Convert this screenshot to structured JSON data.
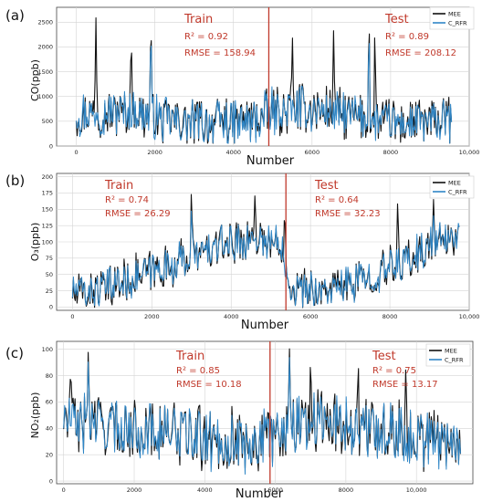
{
  "colors": {
    "measured": "#111111",
    "predicted": "#2f86c6",
    "split_line": "#c0392b",
    "annotation": "#c0392b",
    "grid": "#d4d4d4",
    "axis": "#444444"
  },
  "chart_data": [
    {
      "type": "line",
      "panel_label": "(a)",
      "xlabel": "Number",
      "ylabel": "CO(ppb)",
      "xlim": [
        -500,
        10000
      ],
      "ylim": [
        0,
        2800
      ],
      "xticks": [
        0,
        2000,
        4000,
        6000,
        8000,
        10000
      ],
      "xtick_labels": [
        "0",
        "2000",
        "4000",
        "6000",
        "8000",
        "10,000"
      ],
      "yticks": [
        0,
        500,
        1000,
        1500,
        2000,
        2500
      ],
      "ytick_labels": [
        "0",
        "500",
        "1000",
        "1500",
        "2000",
        "2500"
      ],
      "grid": true,
      "legend_position": "top-right",
      "split_x": 4900,
      "data_end_x": 9550,
      "series": [
        {
          "name": "MEE",
          "role": "measured",
          "base": [
            [
              0,
              650
            ],
            [
              1500,
              700
            ],
            [
              2500,
              500
            ],
            [
              3500,
              450
            ],
            [
              4500,
              500
            ],
            [
              5000,
              700
            ],
            [
              6000,
              750
            ],
            [
              7000,
              600
            ],
            [
              8000,
              450
            ],
            [
              9500,
              500
            ]
          ],
          "amp": 520,
          "spikes": [
            [
              500,
              2600
            ],
            [
              1400,
              2350
            ],
            [
              1900,
              2750
            ],
            [
              5500,
              2300
            ],
            [
              6550,
              2400
            ],
            [
              7450,
              2800
            ],
            [
              7600,
              2500
            ]
          ]
        },
        {
          "name": "C_RFR",
          "role": "predicted",
          "base": [
            [
              0,
              650
            ],
            [
              1500,
              700
            ],
            [
              2500,
              500
            ],
            [
              3500,
              450
            ],
            [
              4500,
              500
            ],
            [
              5000,
              700
            ],
            [
              6000,
              750
            ],
            [
              7000,
              600
            ],
            [
              8000,
              450
            ],
            [
              9500,
              500
            ]
          ],
          "amp": 480,
          "spikes": [
            [
              1900,
              2600
            ],
            [
              7450,
              2550
            ]
          ]
        }
      ],
      "annotations": [
        {
          "title": "Train",
          "r2": "R² = 0.92",
          "rmse": "RMSE = 158.94"
        },
        {
          "title": "Test",
          "r2": "R² = 0.89",
          "rmse": "RMSE = 208.12"
        }
      ]
    },
    {
      "type": "line",
      "panel_label": "(b)",
      "xlabel": "Number",
      "ylabel": "O₃(ppb)",
      "xlim": [
        -400,
        10000
      ],
      "ylim": [
        -5,
        205
      ],
      "xticks": [
        0,
        2000,
        4000,
        6000,
        8000,
        10000
      ],
      "xtick_labels": [
        "0",
        "2000",
        "4000",
        "6000",
        "8000",
        "10,000"
      ],
      "yticks": [
        0,
        25,
        50,
        75,
        100,
        125,
        150,
        175,
        200
      ],
      "ytick_labels": [
        "0",
        "25",
        "50",
        "75",
        "100",
        "125",
        "150",
        "175",
        "200"
      ],
      "grid": true,
      "legend_position": "top-right",
      "split_x": 5380,
      "data_end_x": 9750,
      "series": [
        {
          "name": "MEE",
          "role": "measured",
          "base": [
            [
              0,
              22
            ],
            [
              700,
              25
            ],
            [
              1500,
              45
            ],
            [
              2500,
              65
            ],
            [
              3300,
              85
            ],
            [
              4000,
              100
            ],
            [
              4700,
              105
            ],
            [
              5300,
              95
            ],
            [
              5500,
              30
            ],
            [
              6500,
              25
            ],
            [
              7500,
              45
            ],
            [
              8500,
              75
            ],
            [
              9200,
              100
            ],
            [
              9700,
              110
            ]
          ],
          "amp": 34,
          "spikes": [
            [
              3000,
              190
            ],
            [
              4600,
              178
            ],
            [
              5350,
              155
            ],
            [
              8200,
              175
            ],
            [
              9100,
              165
            ]
          ]
        },
        {
          "name": "C_RFR",
          "role": "predicted",
          "base": [
            [
              0,
              22
            ],
            [
              700,
              25
            ],
            [
              1500,
              45
            ],
            [
              2500,
              65
            ],
            [
              3300,
              85
            ],
            [
              4000,
              100
            ],
            [
              4700,
              105
            ],
            [
              5300,
              95
            ],
            [
              5500,
              30
            ],
            [
              6500,
              25
            ],
            [
              7500,
              45
            ],
            [
              8500,
              75
            ],
            [
              9200,
              100
            ],
            [
              9700,
              110
            ]
          ],
          "amp": 30,
          "spikes": [
            [
              3000,
              160
            ],
            [
              9100,
              140
            ]
          ]
        }
      ],
      "annotations": [
        {
          "title": "Train",
          "r2": "R² = 0.74",
          "rmse": "RMSE = 26.29"
        },
        {
          "title": "Test",
          "r2": "R² = 0.64",
          "rmse": "RMSE = 32.23"
        }
      ]
    },
    {
      "type": "line",
      "panel_label": "(c)",
      "xlabel": "Number",
      "ylabel": "NO₂(ppb)",
      "xlim": [
        -200,
        11600
      ],
      "ylim": [
        -2,
        106
      ],
      "xticks": [
        0,
        2000,
        4000,
        6000,
        8000,
        10000
      ],
      "xtick_labels": [
        "0",
        "2000",
        "4000",
        "6000",
        "8000",
        "10,000"
      ],
      "yticks": [
        0,
        20,
        40,
        60,
        80,
        100
      ],
      "ytick_labels": [
        "0",
        "20",
        "40",
        "60",
        "80",
        "100"
      ],
      "grid": true,
      "legend_position": "top-right",
      "split_x": 5850,
      "data_end_x": 11250,
      "series": [
        {
          "name": "MEE",
          "role": "measured",
          "base": [
            [
              0,
              45
            ],
            [
              1000,
              42
            ],
            [
              2000,
              40
            ],
            [
              3000,
              38
            ],
            [
              4000,
              32
            ],
            [
              5000,
              30
            ],
            [
              5850,
              32
            ],
            [
              6500,
              45
            ],
            [
              7500,
              45
            ],
            [
              8500,
              40
            ],
            [
              9500,
              38
            ],
            [
              10500,
              32
            ],
            [
              11250,
              30
            ]
          ],
          "amp": 26,
          "spikes": [
            [
              200,
              92
            ],
            [
              700,
              103
            ],
            [
              6400,
              103
            ],
            [
              7000,
              98
            ],
            [
              8350,
              95
            ],
            [
              9700,
              89
            ]
          ]
        },
        {
          "name": "C_RFR",
          "role": "predicted",
          "base": [
            [
              0,
              45
            ],
            [
              1000,
              42
            ],
            [
              2000,
              40
            ],
            [
              3000,
              38
            ],
            [
              4000,
              32
            ],
            [
              5000,
              30
            ],
            [
              5850,
              32
            ],
            [
              6500,
              45
            ],
            [
              7500,
              45
            ],
            [
              8500,
              40
            ],
            [
              9500,
              38
            ],
            [
              10500,
              32
            ],
            [
              11250,
              30
            ]
          ],
          "amp": 24,
          "spikes": [
            [
              700,
              95
            ],
            [
              6400,
              96
            ]
          ]
        }
      ],
      "annotations": [
        {
          "title": "Train",
          "r2": "R² = 0.85",
          "rmse": "RMSE = 10.18"
        },
        {
          "title": "Test",
          "r2": "R² = 0.75",
          "rmse": "RMSE = 13.17"
        }
      ]
    }
  ]
}
